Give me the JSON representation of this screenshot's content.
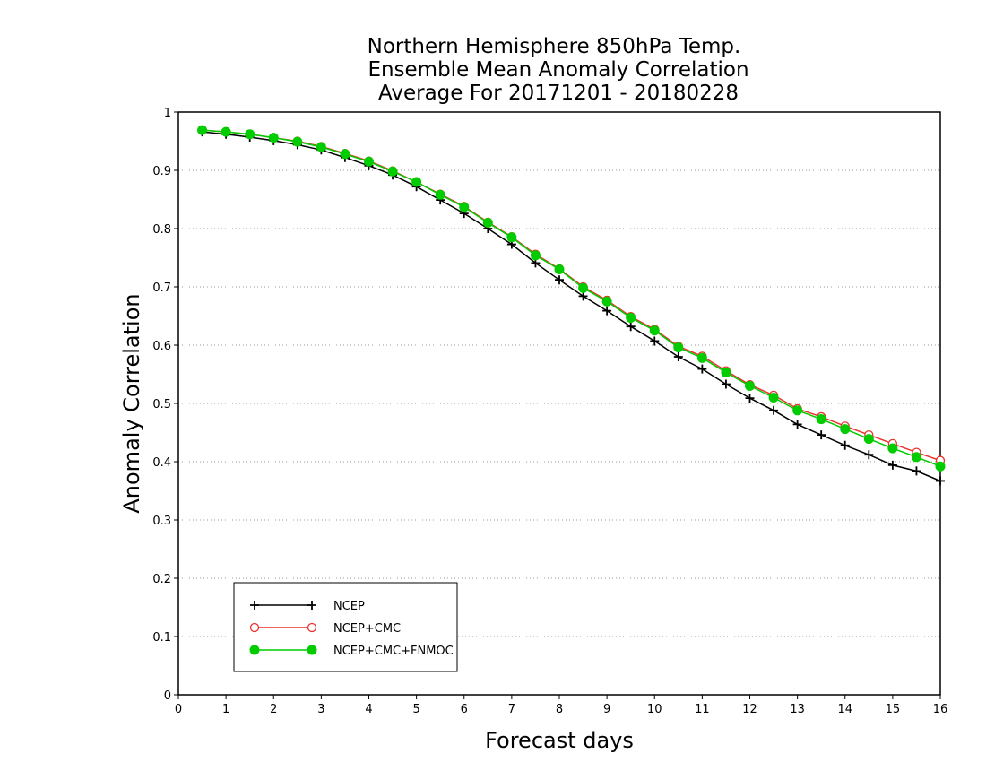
{
  "chart_data": {
    "type": "line",
    "title_lines": [
      "Northern Hemisphere 850hPa Temp.",
      "Ensemble Mean Anomaly Correlation",
      "Average For 20171201 - 20180228"
    ],
    "xlabel": "Forecast days",
    "ylabel": "Anomaly Correlation",
    "xlim": [
      0,
      16
    ],
    "ylim": [
      0,
      1
    ],
    "x_ticks": [
      "0",
      "1",
      "2",
      "3",
      "4",
      "5",
      "6",
      "7",
      "8",
      "9",
      "10",
      "11",
      "12",
      "13",
      "14",
      "15",
      "16"
    ],
    "y_ticks": [
      "0",
      "0.1",
      "0.2",
      "0.3",
      "0.4",
      "0.5",
      "0.6",
      "0.7",
      "0.8",
      "0.9",
      "1"
    ],
    "grid": "dotted horizontal",
    "legend_position": "bottom-left",
    "x": [
      0.5,
      1,
      1.5,
      2,
      2.5,
      3,
      3.5,
      4,
      4.5,
      5,
      5.5,
      6,
      6.5,
      7,
      7.5,
      8,
      8.5,
      9,
      9.5,
      10,
      10.5,
      11,
      11.5,
      12,
      12.5,
      13,
      13.5,
      14,
      14.5,
      15,
      15.5,
      16
    ],
    "series": [
      {
        "name": "NCEP",
        "color": "#000000",
        "marker": "plus",
        "values": [
          0.966,
          0.962,
          0.957,
          0.951,
          0.944,
          0.935,
          0.922,
          0.908,
          0.892,
          0.872,
          0.849,
          0.826,
          0.8,
          0.773,
          0.741,
          0.712,
          0.684,
          0.659,
          0.632,
          0.607,
          0.58,
          0.559,
          0.533,
          0.509,
          0.488,
          0.464,
          0.446,
          0.428,
          0.412,
          0.394,
          0.384,
          0.367
        ]
      },
      {
        "name": "NCEP+CMC",
        "color": "#e8332e",
        "marker": "open-circle",
        "values": [
          0.969,
          0.966,
          0.962,
          0.956,
          0.95,
          0.941,
          0.929,
          0.916,
          0.899,
          0.88,
          0.859,
          0.838,
          0.811,
          0.786,
          0.756,
          0.731,
          0.7,
          0.677,
          0.649,
          0.627,
          0.598,
          0.581,
          0.556,
          0.532,
          0.514,
          0.491,
          0.477,
          0.461,
          0.446,
          0.431,
          0.416,
          0.402
        ]
      },
      {
        "name": "NCEP+CMC+FNMOC",
        "color": "#00cc00",
        "marker": "filled-circle",
        "values": [
          0.969,
          0.966,
          0.962,
          0.956,
          0.949,
          0.94,
          0.928,
          0.915,
          0.898,
          0.88,
          0.858,
          0.837,
          0.81,
          0.785,
          0.754,
          0.73,
          0.698,
          0.675,
          0.647,
          0.625,
          0.596,
          0.578,
          0.553,
          0.53,
          0.51,
          0.488,
          0.473,
          0.456,
          0.439,
          0.423,
          0.408,
          0.392
        ]
      }
    ]
  }
}
